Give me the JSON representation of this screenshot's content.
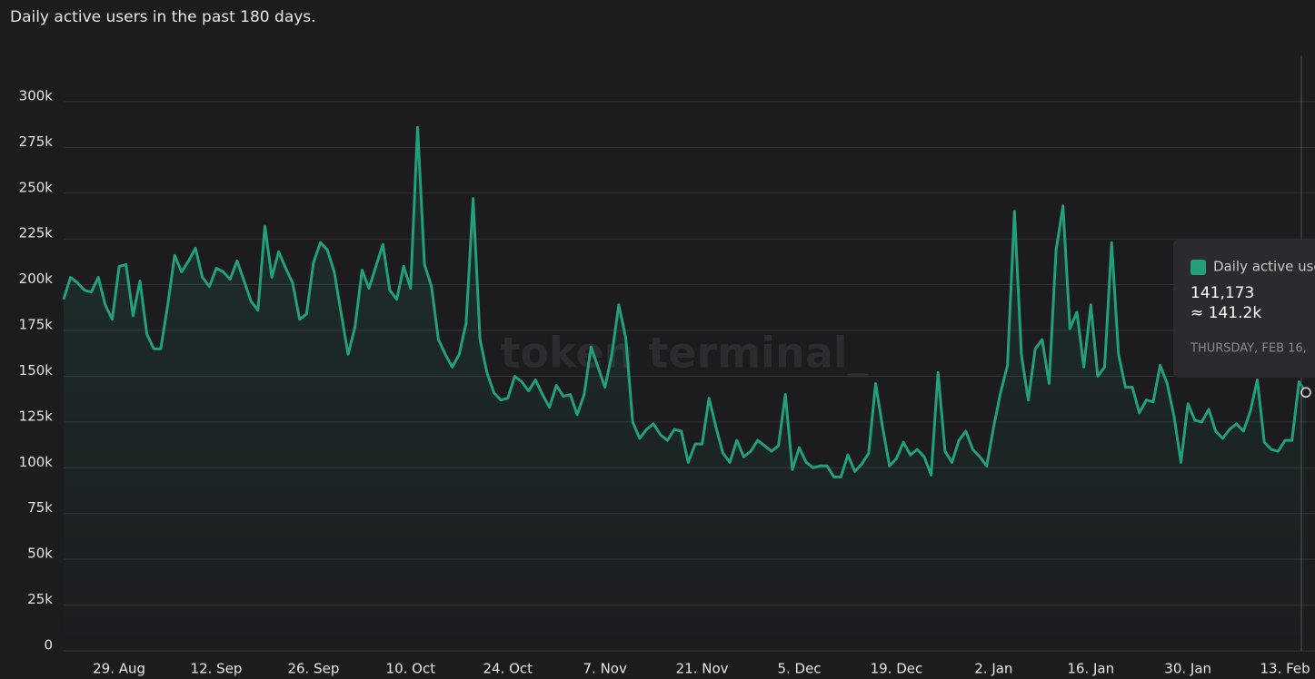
{
  "chart_data": {
    "type": "line",
    "title": "Daily active users in the past 180 days.",
    "watermark": "token terminal_",
    "categories": [
      null,
      null,
      null,
      null,
      null,
      null,
      null,
      null,
      "29. Aug",
      null,
      null,
      null,
      null,
      null,
      null,
      null,
      null,
      null,
      null,
      null,
      null,
      null,
      "12. Sep",
      null,
      null,
      null,
      null,
      null,
      null,
      null,
      null,
      null,
      null,
      null,
      null,
      null,
      "26. Sep",
      null,
      null,
      null,
      null,
      null,
      null,
      null,
      null,
      null,
      null,
      null,
      null,
      null,
      "10. Oct",
      null,
      null,
      null,
      null,
      null,
      null,
      null,
      null,
      null,
      null,
      null,
      null,
      null,
      "24. Oct",
      null,
      null,
      null,
      null,
      null,
      null,
      null,
      null,
      null,
      null,
      null,
      null,
      null,
      "7. Nov",
      null,
      null,
      null,
      null,
      null,
      null,
      null,
      null,
      null,
      null,
      null,
      null,
      null,
      "21. Nov",
      null,
      null,
      null,
      null,
      null,
      null,
      null,
      null,
      null,
      null,
      null,
      null,
      null,
      "5. Dec",
      null,
      null,
      null,
      null,
      null,
      null,
      null,
      null,
      null,
      null,
      null,
      null,
      null,
      "19. Dec",
      null,
      null,
      null,
      null,
      null,
      null,
      null,
      null,
      null,
      null,
      null,
      null,
      null,
      "2. Jan",
      null,
      null,
      null,
      null,
      null,
      null,
      null,
      null,
      null,
      null,
      null,
      null,
      null,
      "16. Jan",
      null,
      null,
      null,
      null,
      null,
      null,
      null,
      null,
      null,
      null,
      null,
      null,
      null,
      "30. Jan",
      null,
      null,
      null,
      null,
      null,
      null,
      null,
      null,
      null,
      null,
      null,
      null,
      null,
      "13. Feb",
      null,
      null,
      null
    ],
    "series": [
      {
        "name": "Daily active users",
        "color": "#22a07c",
        "values": [
          192000,
          204000,
          201000,
          197000,
          196000,
          204000,
          189000,
          181000,
          210000,
          211000,
          183000,
          202000,
          173000,
          165000,
          165000,
          189000,
          216000,
          207000,
          213000,
          220000,
          204000,
          199000,
          209000,
          207000,
          203000,
          213000,
          202000,
          191000,
          186000,
          232000,
          204000,
          218000,
          209000,
          201000,
          181000,
          184000,
          212000,
          223000,
          219000,
          207000,
          184000,
          162000,
          177000,
          208000,
          198000,
          210000,
          222000,
          197000,
          192000,
          210000,
          198000,
          286000,
          211000,
          199000,
          170000,
          162000,
          155000,
          162000,
          179000,
          247000,
          170000,
          152000,
          141000,
          137000,
          138000,
          150000,
          147000,
          142000,
          148000,
          140000,
          133000,
          145000,
          139000,
          140000,
          129000,
          140000,
          166000,
          155000,
          144000,
          162000,
          189000,
          171000,
          125000,
          116000,
          121000,
          124000,
          118000,
          115000,
          121000,
          120000,
          103000,
          113000,
          113000,
          138000,
          122000,
          108000,
          103000,
          115000,
          106000,
          109000,
          115000,
          112000,
          109000,
          112000,
          140000,
          99000,
          111000,
          103000,
          100000,
          101000,
          101000,
          95000,
          95000,
          107000,
          98000,
          102000,
          108000,
          146000,
          122000,
          101000,
          105000,
          114000,
          107000,
          110000,
          106000,
          96000,
          152000,
          109000,
          103000,
          115000,
          120000,
          110000,
          106000,
          101000,
          122000,
          141000,
          156000,
          240000,
          162000,
          137000,
          165000,
          170000,
          146000,
          219000,
          243000,
          176000,
          185000,
          155000,
          189000,
          150000,
          155000,
          223000,
          162000,
          144000,
          144000,
          130000,
          137000,
          136000,
          156000,
          146000,
          128000,
          103000,
          135000,
          126000,
          125000,
          132000,
          120000,
          116000,
          121000,
          124000,
          120000,
          131000,
          148000,
          114000,
          110000,
          109000,
          115000,
          115000,
          147000,
          141173
        ]
      }
    ],
    "ylim": [
      0,
      325000
    ],
    "yticks": [
      0,
      {
        "value": 25000,
        "label": "25k"
      },
      {
        "value": 50000,
        "label": "50k"
      },
      {
        "value": 75000,
        "label": "75k"
      },
      {
        "value": 100000,
        "label": "100k"
      },
      {
        "value": 125000,
        "label": "125k"
      },
      {
        "value": 150000,
        "label": "150k"
      },
      {
        "value": 175000,
        "label": "175k"
      },
      {
        "value": 200000,
        "label": "200k"
      },
      {
        "value": 225000,
        "label": "225k"
      },
      {
        "value": 250000,
        "label": "250k"
      },
      {
        "value": 275000,
        "label": "275k"
      },
      {
        "value": 300000,
        "label": "300k"
      }
    ],
    "grid": true,
    "tooltip": {
      "label": "141,173",
      "approx": "≈ 141.2k",
      "date": "THURSDAY, FEB 16,"
    }
  }
}
